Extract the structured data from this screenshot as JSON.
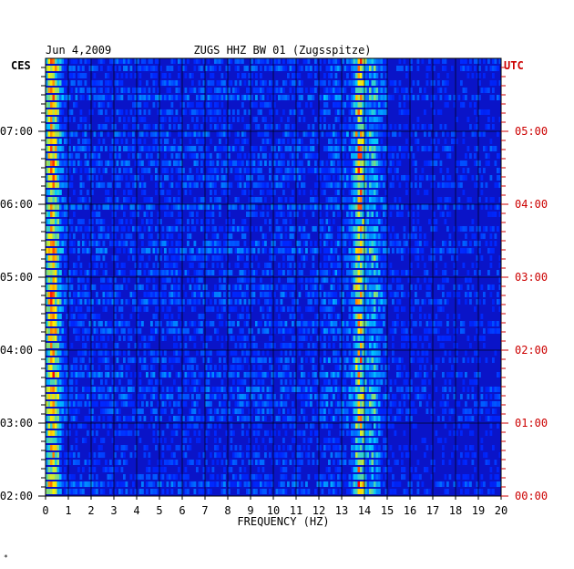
{
  "chart_data": {
    "type": "heatmap",
    "date": "Jun 4,2009",
    "title": "ZUGS HHZ BW 01 (Zugsspitze)",
    "xlabel": "FREQUENCY (HZ)",
    "left_tz": "CES",
    "right_tz": "UTC",
    "xlim": [
      0,
      20
    ],
    "x_ticks": [
      "0",
      "1",
      "2",
      "3",
      "4",
      "5",
      "6",
      "7",
      "8",
      "9",
      "10",
      "11",
      "12",
      "13",
      "14",
      "15",
      "16",
      "17",
      "18",
      "19",
      "20"
    ],
    "y_range_hours_local": [
      2,
      8
    ],
    "y_ticks_left": [
      "07:00",
      "06:00",
      "05:00",
      "04:00",
      "03:00",
      "02:00"
    ],
    "y_ticks_right": [
      "05:00",
      "04:00",
      "03:00",
      "02:00",
      "01:00",
      "00:00"
    ],
    "rows": 60,
    "persistent_peaks_hz": [
      0.3,
      13.8,
      14.4
    ],
    "colors": {
      "low": "#0000cc",
      "mid": "#00c8ff",
      "high": "#ffee00",
      "max": "#ff0000",
      "right_axis": "#cc0000"
    }
  },
  "footnote": "*"
}
